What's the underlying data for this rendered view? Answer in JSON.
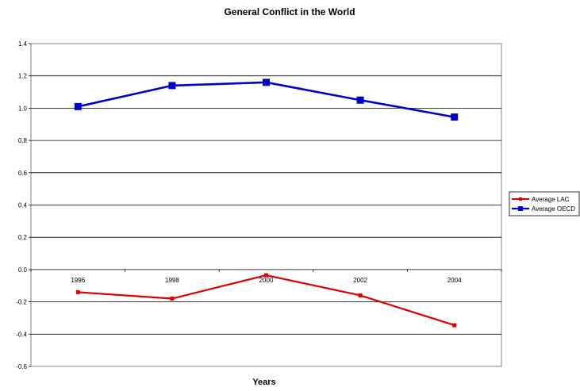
{
  "chart_data": {
    "type": "line",
    "title": "General Conflict in the World",
    "xlabel": "Years",
    "ylabel": "",
    "x": [
      "1996",
      "1998",
      "2000",
      "2002",
      "2004"
    ],
    "ylim": [
      -0.6,
      1.4
    ],
    "yticks": [
      -0.6,
      -0.4,
      -0.2,
      0.0,
      0.2,
      0.4,
      0.6,
      0.8,
      1.0,
      1.2,
      1.4
    ],
    "grid": true,
    "legend_position": "right",
    "series": [
      {
        "name": "Average LAC",
        "color": "#dd0000",
        "marker": "square-small",
        "values": [
          -0.14,
          -0.18,
          -0.035,
          -0.16,
          -0.345
        ]
      },
      {
        "name": "Average OECD",
        "color": "#0000cc",
        "marker": "square-large",
        "values": [
          1.01,
          1.14,
          1.16,
          1.05,
          0.945
        ]
      }
    ]
  }
}
